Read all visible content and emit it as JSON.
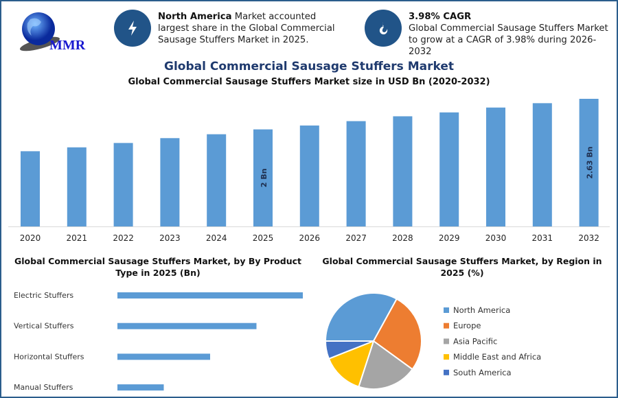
{
  "logo": {
    "text": "MMR"
  },
  "header": {
    "info1": {
      "icon": "lightning-icon",
      "bold": "North America",
      "text": " Market accounted largest share in the Global Commercial Sausage Stuffers Market in 2025."
    },
    "info2": {
      "icon": "flame-icon",
      "bold": "3.98% CAGR",
      "text": "Global Commercial Sausage Stuffers Market to grow at a CAGR of 3.98% during 2026-2032"
    }
  },
  "title": "Global Commercial Sausage Stuffers Market",
  "colors": {
    "bar": "#5b9bd5",
    "frame": "#2b5d8c",
    "icon_bg": "#215488",
    "title": "#1f3a6e"
  },
  "chart_data": [
    {
      "type": "bar",
      "title": "Global Commercial Sausage Stuffers Market size in USD Bn (2020-2032)",
      "categories": [
        "2020",
        "2021",
        "2022",
        "2023",
        "2024",
        "2025",
        "2026",
        "2027",
        "2028",
        "2029",
        "2030",
        "2031",
        "2032"
      ],
      "values": [
        1.55,
        1.63,
        1.72,
        1.82,
        1.9,
        2.0,
        2.08,
        2.17,
        2.27,
        2.35,
        2.45,
        2.54,
        2.63
      ],
      "data_labels": {
        "2025": "2 Bn",
        "2032": "2.63 Bn"
      },
      "ylim": [
        0,
        2.65
      ],
      "grid": false
    },
    {
      "type": "bar",
      "orientation": "horizontal",
      "title": "Global Commercial Sausage Stuffers Market, by By Product Type in 2025 (Bn)",
      "categories": [
        "Electric Stuffers",
        "Vertical Stuffers",
        "Horizontal Stuffers",
        "Manual Stuffers"
      ],
      "values": [
        0.8,
        0.6,
        0.4,
        0.2
      ],
      "xlim": [
        0,
        0.8
      ],
      "grid": false
    },
    {
      "type": "pie",
      "title": "Global Commercial Sausage Stuffers Market, by Region in 2025 (%)",
      "categories": [
        "North America",
        "Europe",
        "Asia Pacific",
        "Middle East and Africa",
        "South America"
      ],
      "values": [
        33,
        27,
        20,
        14,
        6
      ],
      "colors": [
        "#5b9bd5",
        "#ed7d31",
        "#a5a5a5",
        "#ffc000",
        "#4472c4"
      ],
      "legend": "right"
    }
  ]
}
